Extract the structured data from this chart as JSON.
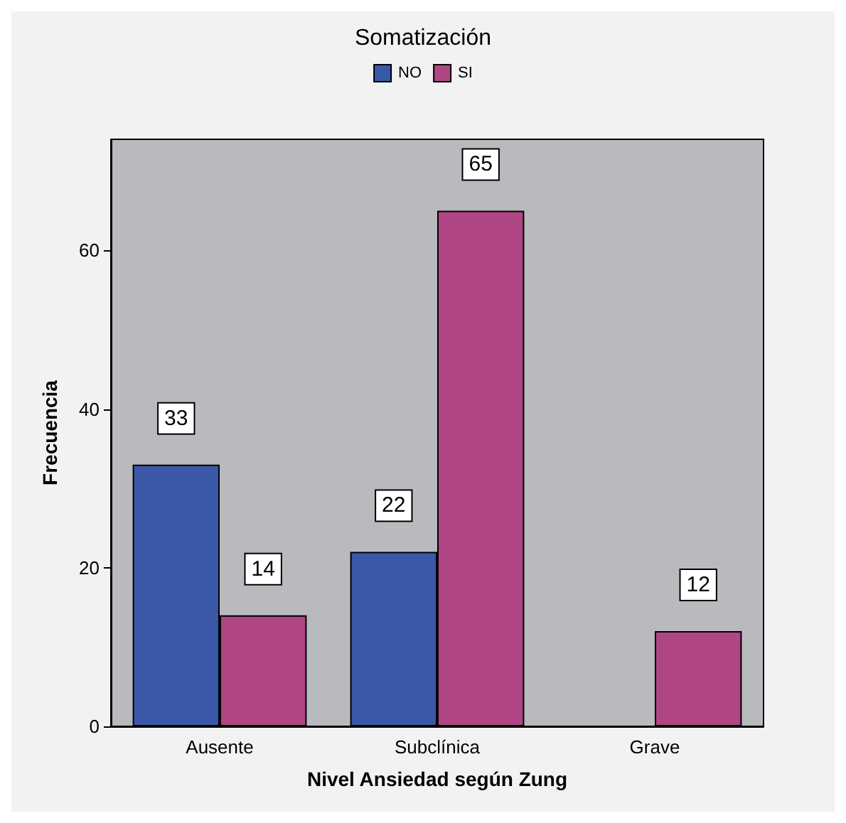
{
  "chart_data": {
    "type": "bar",
    "legend_title": "Somatización",
    "xlabel": "Nivel Ansiedad según Zung",
    "ylabel": "Frecuencia",
    "categories": [
      "Ausente",
      "Subclínica",
      "Grave"
    ],
    "series": [
      {
        "name": "NO",
        "color": "#3b58a8",
        "values": [
          33,
          22,
          null
        ]
      },
      {
        "name": "SI",
        "color": "#b04684",
        "values": [
          14,
          65,
          12
        ]
      }
    ],
    "ylim": [
      0,
      74
    ],
    "yticks": [
      0,
      20,
      40,
      60
    ],
    "grid": false,
    "legend": "top",
    "data_labels": true
  }
}
